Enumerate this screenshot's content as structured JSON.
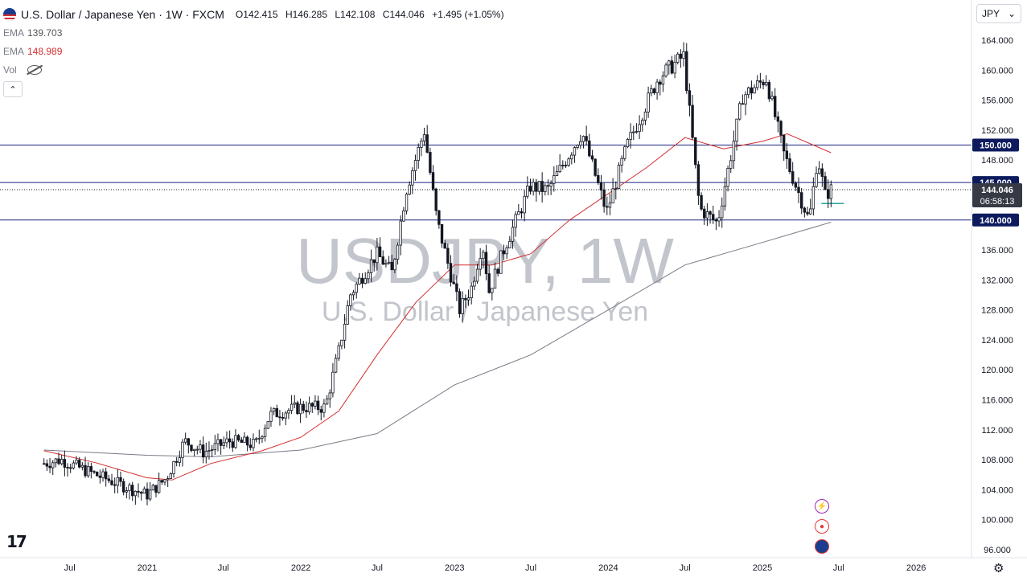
{
  "header": {
    "symbol_title": "U.S. Dollar / Japanese Yen · 1W · FXCM",
    "open_label": "O",
    "open": "142.415",
    "high_label": "H",
    "high": "146.285",
    "low_label": "L",
    "low": "142.108",
    "close_label": "C",
    "close": "144.046",
    "change": "+1.495 (+1.05%)"
  },
  "indicators": [
    {
      "name": "EMA",
      "value": "139.703"
    },
    {
      "name": "EMA",
      "value": "148.989"
    },
    {
      "name": "Vol",
      "value": ""
    }
  ],
  "currency_select": {
    "value": "JPY",
    "arrow": "⌄"
  },
  "collapse_label": "⌃",
  "watermark": {
    "symbol": "USDJPY, 1W",
    "name": "U.S. Dollar / Japanese Yen"
  },
  "logo": "17",
  "settings_icon": "⚙",
  "colors": {
    "up": "#131722",
    "down": "#131722",
    "ema50": "#d32f2f",
    "ema200": "#787b86",
    "hline": "#1a237e",
    "label_bg": "#0d1b5e",
    "price_bg": "#363a45",
    "accent_line": "#26a69a"
  },
  "chart_data": {
    "type": "candlestick",
    "y_axis": {
      "range": [
        94.0,
        166.0
      ],
      "ticks": [
        "164.000",
        "160.000",
        "156.000",
        "152.000",
        "148.000",
        "144.000",
        "136.000",
        "132.000",
        "128.000",
        "124.000",
        "120.000",
        "116.000",
        "112.000",
        "108.000",
        "104.000",
        "100.000",
        "96.000"
      ]
    },
    "x_axis": {
      "range": [
        "2020-05-01",
        "2026-05-01"
      ],
      "ticks": [
        {
          "label": "Jul",
          "date": "2020-07-01"
        },
        {
          "label": "2021",
          "date": "2021-01-01"
        },
        {
          "label": "Jul",
          "date": "2021-07-01"
        },
        {
          "label": "2022",
          "date": "2022-01-01"
        },
        {
          "label": "Jul",
          "date": "2022-07-01"
        },
        {
          "label": "2023",
          "date": "2023-01-01"
        },
        {
          "label": "Jul",
          "date": "2023-07-01"
        },
        {
          "label": "2024",
          "date": "2024-01-01"
        },
        {
          "label": "Jul",
          "date": "2024-07-01"
        },
        {
          "label": "2025",
          "date": "2025-01-01"
        },
        {
          "label": "Jul",
          "date": "2025-07-01"
        },
        {
          "label": "2026",
          "date": "2026-01-01"
        }
      ]
    },
    "price_path": [
      [
        "2020-05-01",
        107.5
      ],
      [
        "2020-06-10",
        108.0
      ],
      [
        "2020-09-01",
        106.0
      ],
      [
        "2020-10-15",
        105.0
      ],
      [
        "2020-12-31",
        103.3
      ],
      [
        "2021-02-15",
        105.5
      ],
      [
        "2021-03-31",
        110.5
      ],
      [
        "2021-05-15",
        109.0
      ],
      [
        "2021-07-15",
        110.5
      ],
      [
        "2021-09-15",
        110.0
      ],
      [
        "2021-10-20",
        114.0
      ],
      [
        "2021-12-31",
        115.0
      ],
      [
        "2022-02-28",
        115.0
      ],
      [
        "2022-04-01",
        122.5
      ],
      [
        "2022-04-28",
        130.0
      ],
      [
        "2022-06-30",
        135.5
      ],
      [
        "2022-08-05",
        133.0
      ],
      [
        "2022-09-08",
        144.0
      ],
      [
        "2022-10-21",
        151.9
      ],
      [
        "2022-11-20",
        140.0
      ],
      [
        "2023-01-13",
        128.0
      ],
      [
        "2023-02-10",
        131.0
      ],
      [
        "2023-03-08",
        137.0
      ],
      [
        "2023-03-24",
        130.5
      ],
      [
        "2023-05-01",
        136.5
      ],
      [
        "2023-06-30",
        144.5
      ],
      [
        "2023-08-10",
        144.0
      ],
      [
        "2023-10-31",
        151.7
      ],
      [
        "2023-12-28",
        141.0
      ],
      [
        "2024-02-15",
        150.0
      ],
      [
        "2024-04-29",
        159.0
      ],
      [
        "2024-06-28",
        161.9
      ],
      [
        "2024-08-05",
        141.5
      ],
      [
        "2024-09-16",
        139.6
      ],
      [
        "2024-11-15",
        156.5
      ],
      [
        "2025-01-10",
        158.9
      ],
      [
        "2025-02-20",
        149.0
      ],
      [
        "2025-04-22",
        139.9
      ],
      [
        "2025-05-12",
        148.5
      ],
      [
        "2025-05-30",
        143.3
      ],
      [
        "2025-06-13",
        144.046
      ]
    ],
    "ema_50": [
      [
        "2020-05-01",
        109.2
      ],
      [
        "2020-09-01",
        107.6
      ],
      [
        "2020-12-31",
        105.6
      ],
      [
        "2021-03-01",
        105.3
      ],
      [
        "2021-06-01",
        107.5
      ],
      [
        "2021-10-01",
        109.2
      ],
      [
        "2022-01-01",
        111.0
      ],
      [
        "2022-04-01",
        114.5
      ],
      [
        "2022-07-01",
        122.0
      ],
      [
        "2022-10-01",
        129.0
      ],
      [
        "2023-01-01",
        134.0
      ],
      [
        "2023-04-01",
        134.0
      ],
      [
        "2023-07-01",
        135.5
      ],
      [
        "2023-10-01",
        140.0
      ],
      [
        "2024-01-01",
        143.5
      ],
      [
        "2024-04-01",
        147.0
      ],
      [
        "2024-07-01",
        151.0
      ],
      [
        "2024-10-01",
        149.5
      ],
      [
        "2025-01-01",
        150.5
      ],
      [
        "2025-03-01",
        151.5
      ],
      [
        "2025-06-13",
        148.989
      ]
    ],
    "ema_200": [
      [
        "2020-05-01",
        109.3
      ],
      [
        "2020-12-31",
        108.6
      ],
      [
        "2021-06-01",
        108.4
      ],
      [
        "2022-01-01",
        109.3
      ],
      [
        "2022-07-01",
        111.5
      ],
      [
        "2023-01-01",
        118.0
      ],
      [
        "2023-07-01",
        122.0
      ],
      [
        "2024-01-01",
        128.0
      ],
      [
        "2024-07-01",
        134.0
      ],
      [
        "2025-01-01",
        137.0
      ],
      [
        "2025-06-13",
        139.703
      ]
    ],
    "horizontal_levels": [
      "150.000",
      "145.000",
      "140.000"
    ],
    "last_price": {
      "value": "144.046",
      "countdown": "06:58:13"
    },
    "accent_level": 142.2
  }
}
